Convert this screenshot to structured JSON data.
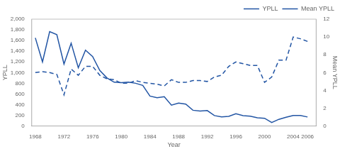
{
  "chart_data": {
    "type": "line",
    "x": [
      1968,
      1969,
      1970,
      1971,
      1972,
      1973,
      1974,
      1975,
      1976,
      1977,
      1978,
      1979,
      1980,
      1981,
      1982,
      1983,
      1984,
      1985,
      1986,
      1987,
      1988,
      1989,
      1990,
      1991,
      1992,
      1993,
      1994,
      1995,
      1996,
      1997,
      1998,
      1999,
      2000,
      2001,
      2002,
      2003,
      2004,
      2005,
      2006
    ],
    "series": [
      {
        "name": "YPLL",
        "color": "#2255a4",
        "line_style": "solid",
        "values": [
          1650,
          1200,
          1768,
          1710,
          1160,
          1550,
          1090,
          1420,
          1300,
          1040,
          900,
          820,
          810,
          820,
          800,
          760,
          560,
          530,
          550,
          390,
          430,
          410,
          295,
          280,
          290,
          195,
          170,
          180,
          230,
          195,
          185,
          155,
          145,
          66,
          125,
          165,
          198,
          198,
          169
        ]
      },
      {
        "name": "Mean YPLL",
        "color": "#2255a4",
        "line_style": "dashed",
        "axis": "y2",
        "values": [
          6.0,
          6.1,
          6.0,
          5.8,
          3.5,
          6.4,
          5.7,
          6.7,
          6.7,
          5.7,
          5.3,
          5.2,
          4.8,
          4.8,
          5.1,
          4.9,
          4.8,
          4.7,
          4.5,
          5.2,
          4.9,
          4.9,
          5.1,
          5.1,
          5.0,
          5.5,
          5.7,
          6.7,
          7.2,
          7.0,
          6.8,
          6.8,
          4.9,
          5.5,
          7.4,
          7.4,
          10.0,
          9.8,
          9.5
        ]
      }
    ],
    "xlabel": "Year",
    "ylabel": "YPLL",
    "y2label": "Mean YPLL",
    "xlim": [
      1967.5,
      2007.2
    ],
    "xticks": [
      1968,
      1972,
      1976,
      1980,
      1984,
      1988,
      1992,
      1996,
      2000,
      2004,
      2006
    ],
    "ylim": [
      0,
      2000
    ],
    "yticks": [
      0,
      200,
      400,
      600,
      800,
      {
        "value": 1000,
        "label": "1,000"
      },
      {
        "value": 1200,
        "label": "1,200"
      },
      {
        "value": 1400,
        "label": "1,400"
      },
      {
        "value": 1600,
        "label": "1,600"
      },
      {
        "value": 1800,
        "label": "1,800"
      },
      {
        "value": 2000,
        "label": "2,000"
      }
    ],
    "y2lim": [
      0,
      12
    ],
    "y2ticks": [
      0,
      2,
      4,
      6,
      8,
      10,
      12
    ],
    "grid": false,
    "legend": "upper right"
  }
}
